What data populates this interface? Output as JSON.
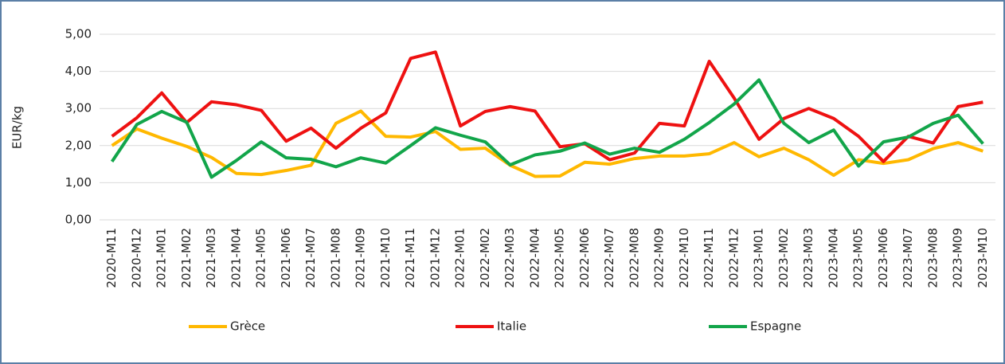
{
  "chart_data": {
    "type": "line",
    "y_label": "EUR/kg",
    "categories": [
      "2020-M11",
      "2020-M12",
      "2021-M01",
      "2021-M02",
      "2021-M03",
      "2021-M04",
      "2021-M05",
      "2021-M06",
      "2021-M07",
      "2021-M08",
      "2021-M09",
      "2021-M10",
      "2021-M11",
      "2021-M12",
      "2022-M01",
      "2022-M02",
      "2022-M03",
      "2022-M04",
      "2022-M05",
      "2022-M06",
      "2022-M07",
      "2022-M08",
      "2022-M09",
      "2022-M10",
      "2022-M11",
      "2022-M12",
      "2023-M01",
      "2023-M02",
      "2023-M03",
      "2023-M04",
      "2023-M05",
      "2023-M06",
      "2023-M07",
      "2023-M08",
      "2023-M09",
      "2023-M10"
    ],
    "series": [
      {
        "name": "Grèce",
        "color": "#ffb800",
        "values": [
          2.0,
          2.45,
          2.2,
          1.98,
          1.68,
          1.25,
          1.22,
          1.33,
          1.47,
          2.6,
          2.93,
          2.25,
          2.23,
          2.38,
          1.9,
          1.93,
          1.47,
          1.17,
          1.18,
          1.55,
          1.5,
          1.65,
          1.72,
          1.72,
          1.78,
          2.08,
          1.7,
          1.93,
          1.62,
          1.2,
          1.62,
          1.52,
          1.62,
          1.92,
          2.08,
          1.85
        ]
      },
      {
        "name": "Italie",
        "color": "#ee1111",
        "values": [
          2.25,
          2.75,
          3.42,
          2.62,
          3.18,
          3.1,
          2.95,
          2.12,
          2.47,
          1.93,
          2.47,
          2.88,
          4.35,
          4.52,
          2.53,
          2.92,
          3.05,
          2.93,
          1.97,
          2.05,
          1.62,
          1.8,
          2.6,
          2.53,
          4.27,
          3.28,
          2.17,
          2.73,
          3.0,
          2.73,
          2.25,
          1.57,
          2.25,
          2.07,
          3.05,
          3.17
        ]
      },
      {
        "name": "Espagne",
        "color": "#12a54a",
        "values": [
          1.57,
          2.57,
          2.92,
          2.63,
          1.15,
          1.6,
          2.1,
          1.67,
          1.63,
          1.43,
          1.67,
          1.53,
          2.0,
          2.48,
          2.28,
          2.1,
          1.48,
          1.75,
          1.85,
          2.07,
          1.77,
          1.93,
          1.82,
          2.17,
          2.62,
          3.12,
          3.77,
          2.6,
          2.08,
          2.42,
          1.45,
          2.1,
          2.23,
          2.6,
          2.82,
          2.05
        ]
      }
    ],
    "ylim": [
      0,
      5
    ],
    "yticks": [
      {
        "value": 0,
        "label": "0,00"
      },
      {
        "value": 1,
        "label": "1,00"
      },
      {
        "value": 2,
        "label": "2,00"
      },
      {
        "value": 3,
        "label": "3,00"
      },
      {
        "value": 4,
        "label": "4,00"
      },
      {
        "value": 5,
        "label": "5,00"
      }
    ],
    "grid": true,
    "legend": "bottom"
  }
}
